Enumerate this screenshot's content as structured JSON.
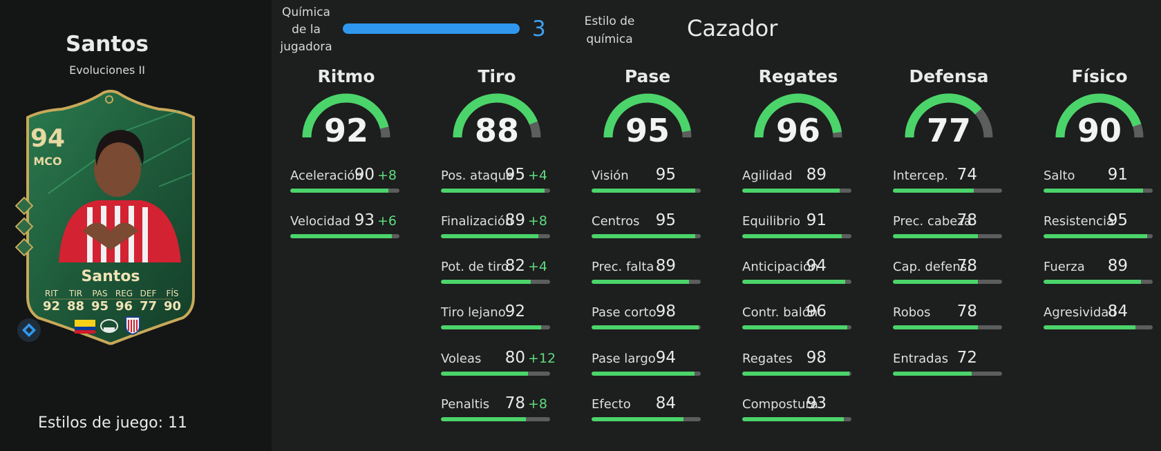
{
  "player": {
    "name": "Santos",
    "subtitle": "Evoluciones II",
    "playstyles_label": "Estilos de juego: 11"
  },
  "card": {
    "rating": "94",
    "position": "MCO",
    "name": "Santos",
    "stats": [
      {
        "label": "RIT",
        "value": "92"
      },
      {
        "label": "TIR",
        "value": "88"
      },
      {
        "label": "PAS",
        "value": "95"
      },
      {
        "label": "REG",
        "value": "96"
      },
      {
        "label": "DEF",
        "value": "77"
      },
      {
        "label": "FÍS",
        "value": "90"
      }
    ],
    "icons": [
      "chemistry-diamond-icon",
      "colombia-flag-icon",
      "liga-f-logo",
      "atletico-madrid-crest"
    ]
  },
  "chemistry": {
    "label": "Química de la jugadora",
    "value": "3",
    "fill": 1.0,
    "style_label": "Estilo de química",
    "style_value": "Cazador"
  },
  "colors": {
    "accent_green": "#4bd46a",
    "bonus_green": "#5fdc7e",
    "chem_blue": "#2f98ee",
    "card_green": "#1e5a3a",
    "card_gold": "#c8a95a"
  },
  "categories": [
    {
      "title": "Ritmo",
      "value": "92",
      "level": 92,
      "attributes": [
        {
          "name": "Aceleración",
          "value": "90",
          "bonus": "+8",
          "level": 90
        },
        {
          "name": "Velocidad",
          "value": "93",
          "bonus": "+6",
          "level": 93
        }
      ]
    },
    {
      "title": "Tiro",
      "value": "88",
      "level": 88,
      "attributes": [
        {
          "name": "Pos. ataque",
          "value": "95",
          "bonus": "+4",
          "level": 95
        },
        {
          "name": "Finalización",
          "value": "89",
          "bonus": "+8",
          "level": 89
        },
        {
          "name": "Pot. de tiro",
          "value": "82",
          "bonus": "+4",
          "level": 82
        },
        {
          "name": "Tiro lejano",
          "value": "92",
          "bonus": "",
          "level": 92
        },
        {
          "name": "Voleas",
          "value": "80",
          "bonus": "+12",
          "level": 80
        },
        {
          "name": "Penaltis",
          "value": "78",
          "bonus": "+8",
          "level": 78
        }
      ]
    },
    {
      "title": "Pase",
      "value": "95",
      "level": 95,
      "attributes": [
        {
          "name": "Visión",
          "value": "95",
          "bonus": "",
          "level": 95
        },
        {
          "name": "Centros",
          "value": "95",
          "bonus": "",
          "level": 95
        },
        {
          "name": "Prec. falta",
          "value": "89",
          "bonus": "",
          "level": 89
        },
        {
          "name": "Pase corto",
          "value": "98",
          "bonus": "",
          "level": 98
        },
        {
          "name": "Pase largo",
          "value": "94",
          "bonus": "",
          "level": 94
        },
        {
          "name": "Efecto",
          "value": "84",
          "bonus": "",
          "level": 84
        }
      ]
    },
    {
      "title": "Regates",
      "value": "96",
      "level": 96,
      "attributes": [
        {
          "name": "Agilidad",
          "value": "89",
          "bonus": "",
          "level": 89
        },
        {
          "name": "Equilibrio",
          "value": "91",
          "bonus": "",
          "level": 91
        },
        {
          "name": "Anticipación",
          "value": "94",
          "bonus": "",
          "level": 94
        },
        {
          "name": "Contr. balón",
          "value": "96",
          "bonus": "",
          "level": 96
        },
        {
          "name": "Regates",
          "value": "98",
          "bonus": "",
          "level": 98
        },
        {
          "name": "Compostura",
          "value": "93",
          "bonus": "",
          "level": 93
        }
      ]
    },
    {
      "title": "Defensa",
      "value": "77",
      "level": 77,
      "attributes": [
        {
          "name": "Intercep.",
          "value": "74",
          "bonus": "",
          "level": 74
        },
        {
          "name": "Prec. cabeza",
          "value": "78",
          "bonus": "",
          "level": 78
        },
        {
          "name": "Cap. defens.",
          "value": "78",
          "bonus": "",
          "level": 78
        },
        {
          "name": "Robos",
          "value": "78",
          "bonus": "",
          "level": 78
        },
        {
          "name": "Entradas",
          "value": "72",
          "bonus": "",
          "level": 72
        }
      ]
    },
    {
      "title": "Físico",
      "value": "90",
      "level": 90,
      "attributes": [
        {
          "name": "Salto",
          "value": "91",
          "bonus": "",
          "level": 91
        },
        {
          "name": "Resistencia",
          "value": "95",
          "bonus": "",
          "level": 95
        },
        {
          "name": "Fuerza",
          "value": "89",
          "bonus": "",
          "level": 89
        },
        {
          "name": "Agresividad",
          "value": "84",
          "bonus": "",
          "level": 84
        }
      ]
    }
  ]
}
